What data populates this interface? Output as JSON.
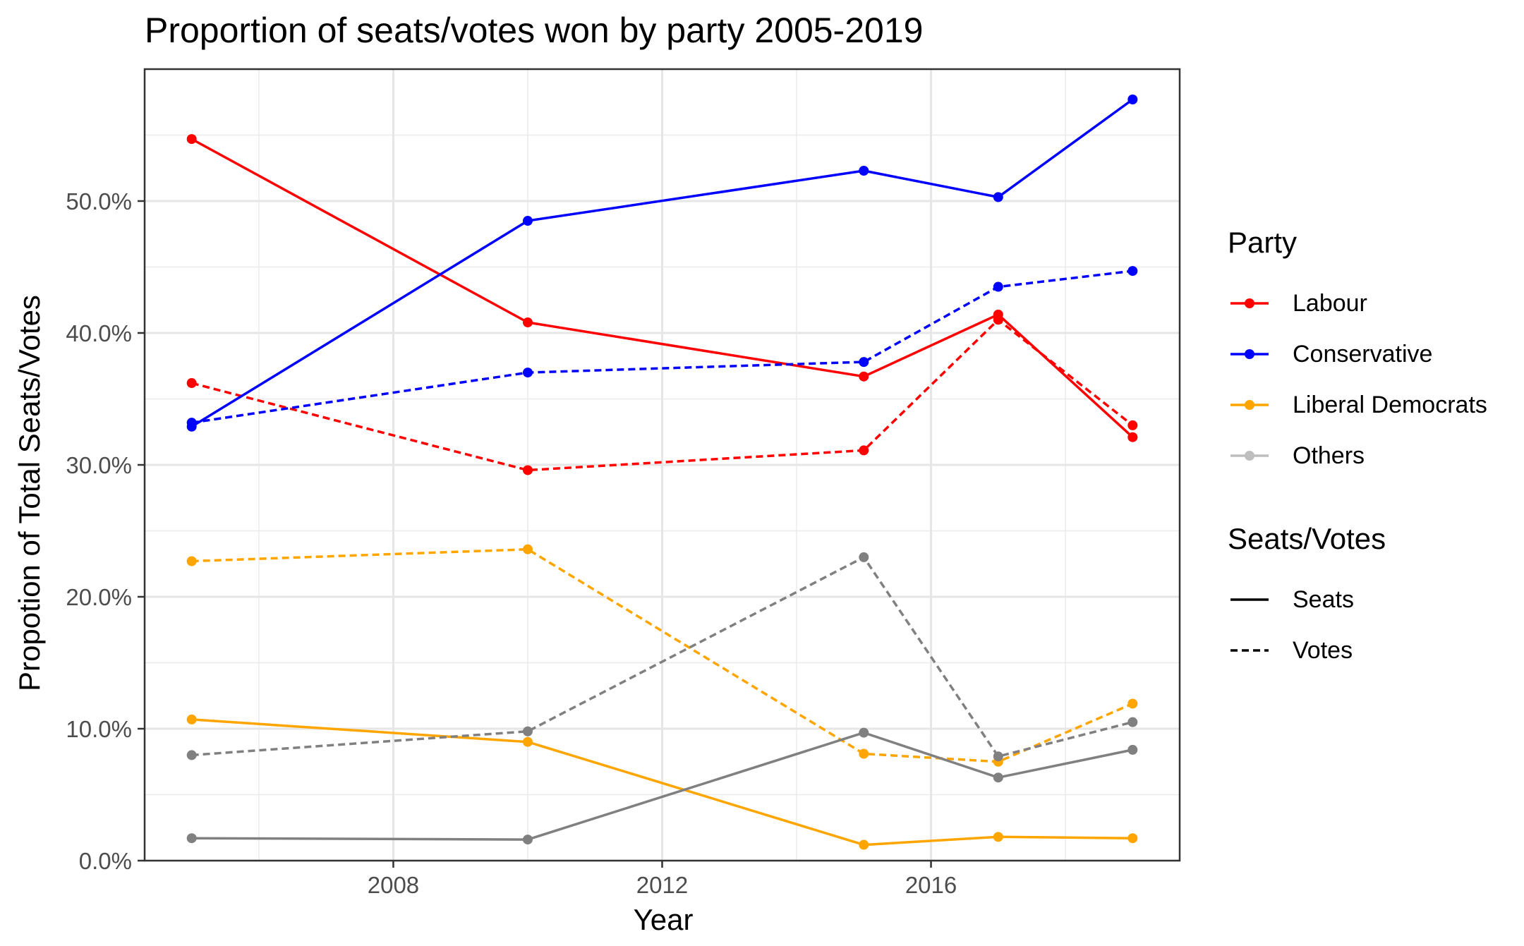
{
  "chart_data": {
    "type": "line",
    "title": "Proportion of seats/votes won by party 2005-2019",
    "xlabel": "Year",
    "ylabel": "Propotion of Total Seats/Votes",
    "x": [
      2005,
      2010,
      2015,
      2017,
      2019
    ],
    "xlim": [
      2004.3,
      2019.7
    ],
    "ylim": [
      0,
      0.6
    ],
    "xticks": [
      2008,
      2012,
      2016
    ],
    "yticks": [
      0,
      0.1,
      0.2,
      0.3,
      0.4,
      0.5
    ],
    "ytick_labels": [
      "0.0%",
      "10.0%",
      "20.0%",
      "30.0%",
      "40.0%",
      "50.0%"
    ],
    "grid": true,
    "legend_position": "right",
    "legend": {
      "party_title": "Party",
      "party_entries": [
        {
          "name": "Labour",
          "color": "#ff0000"
        },
        {
          "name": "Conservative",
          "color": "#0000ff"
        },
        {
          "name": "Liberal Democrats",
          "color": "#ffa500"
        },
        {
          "name": "Others",
          "color": "#bebebe"
        }
      ],
      "type_title": "Seats/Votes",
      "type_entries": [
        {
          "name": "Seats",
          "dash": "solid"
        },
        {
          "name": "Votes",
          "dash": "dashed"
        }
      ]
    },
    "series": [
      {
        "party": "Labour",
        "kind": "Seats",
        "color": "#ff0000",
        "dash": "solid",
        "values": [
          0.547,
          0.408,
          0.367,
          0.414,
          0.321
        ]
      },
      {
        "party": "Labour",
        "kind": "Votes",
        "color": "#ff0000",
        "dash": "dashed",
        "values": [
          0.362,
          0.296,
          0.311,
          0.41,
          0.33
        ]
      },
      {
        "party": "Conservative",
        "kind": "Seats",
        "color": "#0000ff",
        "dash": "solid",
        "values": [
          0.329,
          0.485,
          0.523,
          0.503,
          0.577
        ]
      },
      {
        "party": "Conservative",
        "kind": "Votes",
        "color": "#0000ff",
        "dash": "dashed",
        "values": [
          0.332,
          0.37,
          0.378,
          0.435,
          0.447
        ]
      },
      {
        "party": "Liberal Democrats",
        "kind": "Seats",
        "color": "#ffa500",
        "dash": "solid",
        "values": [
          0.107,
          0.09,
          0.012,
          0.018,
          0.017
        ]
      },
      {
        "party": "Liberal Democrats",
        "kind": "Votes",
        "color": "#ffa500",
        "dash": "dashed",
        "values": [
          0.227,
          0.236,
          0.081,
          0.075,
          0.119
        ]
      },
      {
        "party": "Others",
        "kind": "Seats",
        "color": "#808080",
        "dash": "solid",
        "values": [
          0.017,
          0.016,
          0.097,
          0.063,
          0.084
        ]
      },
      {
        "party": "Others",
        "kind": "Votes",
        "color": "#808080",
        "dash": "dashed",
        "values": [
          0.08,
          0.098,
          0.23,
          0.079,
          0.105
        ]
      }
    ]
  }
}
